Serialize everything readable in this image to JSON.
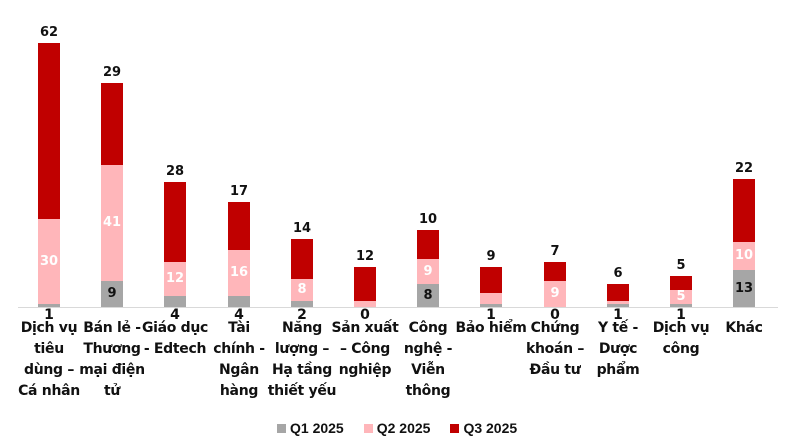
{
  "chart_data": {
    "type": "bar",
    "stacked": true,
    "title": "",
    "xlabel": "",
    "ylabel": "",
    "grid": false,
    "legend_position": "bottom",
    "categories": [
      "Dịch vụ tiêu dùng – Cá nhân",
      "Bán lẻ - Thương mại điện tử",
      "Giáo dục - Edtech",
      "Tài chính - Ngân hàng",
      "Năng lượng – Hạ tầng thiết yếu",
      "Sản xuất – Công nghiệp",
      "Công nghệ - Viễn thông",
      "Bảo hiểm",
      "Chứng khoán – Đầu tư",
      "Y tế - Dược phẩm",
      "Dịch vụ công",
      "Khác"
    ],
    "series": [
      {
        "name": "Q1 2025",
        "color": "#A6A6A6",
        "values": [
          1,
          9,
          4,
          4,
          2,
          0,
          8,
          1,
          0,
          1,
          1,
          13
        ]
      },
      {
        "name": "Q2 2025",
        "color": "#FFB6BA",
        "values": [
          30,
          41,
          12,
          16,
          8,
          2,
          9,
          4,
          9,
          1,
          5,
          10
        ]
      },
      {
        "name": "Q3 2025",
        "color": "#C00000",
        "values": [
          62,
          29,
          28,
          17,
          14,
          12,
          10,
          9,
          7,
          6,
          5,
          22
        ]
      }
    ]
  },
  "category_lines": [
    [
      "Dịch vụ",
      "tiêu",
      "dùng –",
      "Cá nhân"
    ],
    [
      "Bán lẻ -",
      "Thương",
      "mại điện",
      "tử"
    ],
    [
      "Giáo dục",
      "- Edtech"
    ],
    [
      "Tài",
      "chính -",
      "Ngân",
      "hàng"
    ],
    [
      "Năng",
      "lượng –",
      "Hạ tầng",
      "thiết yếu"
    ],
    [
      "Sản xuất",
      "– Công",
      "nghiệp"
    ],
    [
      "Công",
      "nghệ -",
      "Viễn",
      "thông"
    ],
    [
      "Bảo hiểm"
    ],
    [
      "Chứng",
      "khoán –",
      "Đầu tư"
    ],
    [
      "Y tế -",
      "Dược",
      "phẩm"
    ],
    [
      "Dịch vụ",
      "công"
    ],
    [
      "Khác"
    ]
  ],
  "legend": [
    {
      "label": "Q1 2025",
      "color": "#A6A6A6"
    },
    {
      "label": "Q2 2025",
      "color": "#FFB6BA"
    },
    {
      "label": "Q3 2025",
      "color": "#C00000"
    }
  ]
}
